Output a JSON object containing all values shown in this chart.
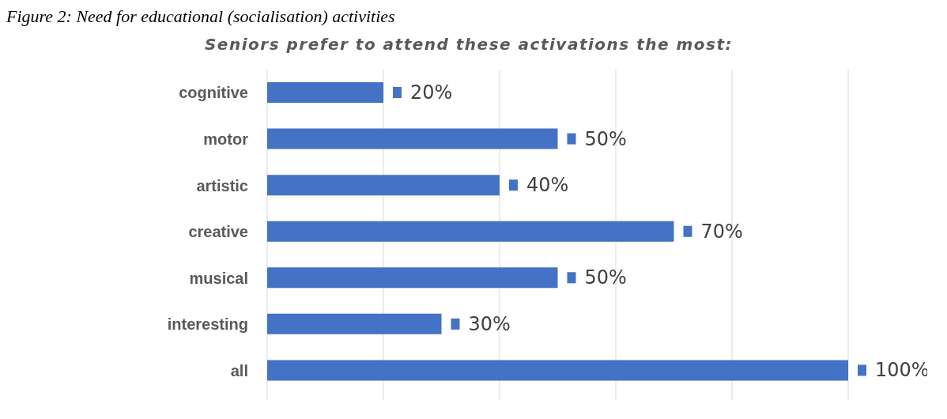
{
  "chart_data": {
    "type": "bar",
    "orientation": "horizontal",
    "title": "Seniors prefer to attend these activations the most:",
    "annotations": [
      "Figure 2: Need for educational (socialisation) activities"
    ],
    "categories": [
      "cognitive",
      "motor",
      "artistic",
      "creative",
      "musical",
      "interesting",
      "all"
    ],
    "values": [
      20,
      50,
      40,
      70,
      50,
      30,
      100
    ],
    "value_labels": [
      "20%",
      "50%",
      "40%",
      "70%",
      "50%",
      "30%",
      "100%"
    ],
    "color": "#4472c4",
    "xlim": [
      0,
      100
    ],
    "xticks": [
      {
        "value": 0,
        "label": null
      },
      {
        "value": 20,
        "label": null
      },
      {
        "value": 40,
        "label": null
      },
      {
        "value": 60,
        "label": null
      },
      {
        "value": 80,
        "label": null
      },
      {
        "value": 100,
        "label": null
      }
    ],
    "grid": "x",
    "tick_labels": "y"
  }
}
